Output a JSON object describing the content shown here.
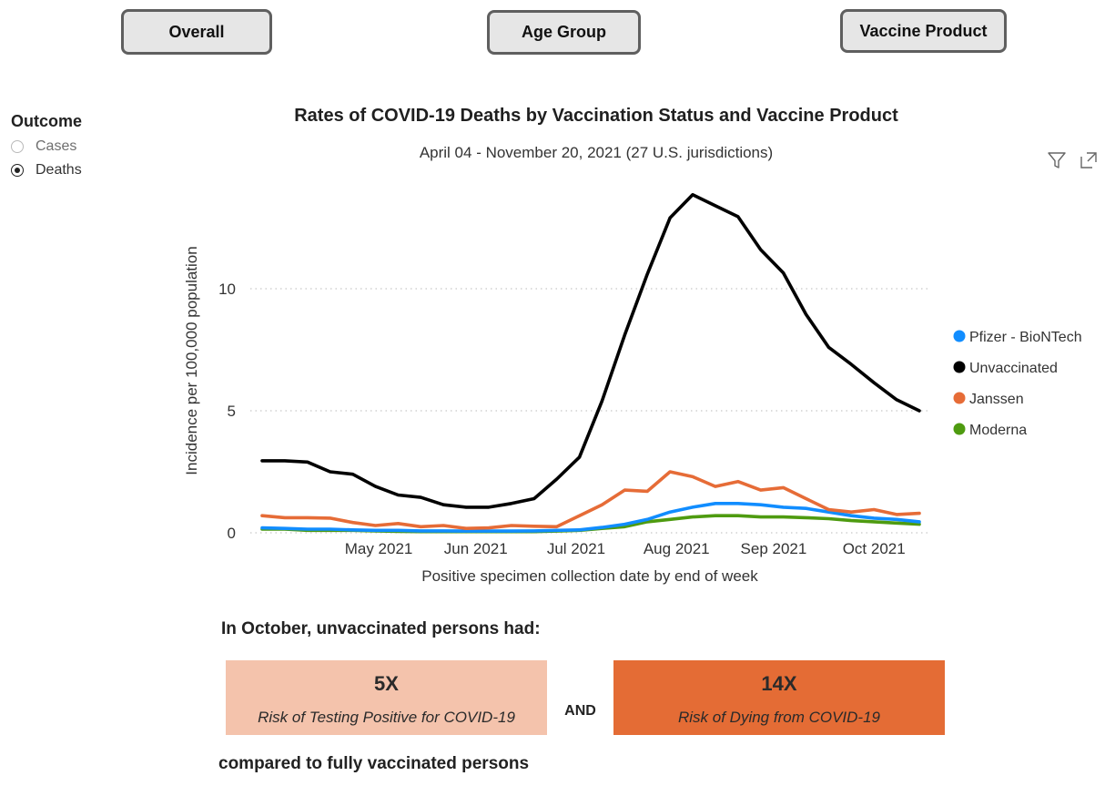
{
  "tabs": [
    {
      "label": "Overall"
    },
    {
      "label": "Age Group"
    },
    {
      "label": "Vaccine Product"
    }
  ],
  "outcome": {
    "title": "Outcome",
    "options": [
      {
        "label": "Cases",
        "selected": false
      },
      {
        "label": "Deaths",
        "selected": true
      }
    ]
  },
  "icons": {
    "filter": "filter-icon",
    "expand": "focus-mode-icon"
  },
  "chart_data": {
    "type": "line",
    "title": "Rates of COVID-19 Deaths by Vaccination Status and Vaccine Product",
    "subtitle": "April 04 - November 20, 2021 (27 U.S. jurisdictions)",
    "xlabel": "Positive specimen collection date by end of week",
    "ylabel": "Incidence per 100,000 population",
    "x_ticks": [
      "May 2021",
      "Jun 2021",
      "Jul 2021",
      "Aug 2021",
      "Sep 2021",
      "Oct 2021"
    ],
    "y_ticks": [
      0,
      5,
      10
    ],
    "ylim": [
      0,
      14.5
    ],
    "grid": "horizontal dotted",
    "legend_position": "right",
    "x": [
      "2021-04-10",
      "2021-04-17",
      "2021-04-24",
      "2021-05-01",
      "2021-05-08",
      "2021-05-15",
      "2021-05-22",
      "2021-05-29",
      "2021-06-05",
      "2021-06-12",
      "2021-06-19",
      "2021-06-26",
      "2021-07-03",
      "2021-07-10",
      "2021-07-17",
      "2021-07-24",
      "2021-07-31",
      "2021-08-07",
      "2021-08-14",
      "2021-08-21",
      "2021-08-28",
      "2021-09-04",
      "2021-09-11",
      "2021-09-18",
      "2021-09-25",
      "2021-10-02",
      "2021-10-09",
      "2021-10-16",
      "2021-10-23",
      "2021-10-30"
    ],
    "series": [
      {
        "name": "Pfizer - BioNTech",
        "color": "#118DFF",
        "values": [
          0.2,
          0.18,
          0.15,
          0.15,
          0.12,
          0.1,
          0.1,
          0.08,
          0.08,
          0.07,
          0.07,
          0.07,
          0.08,
          0.1,
          0.12,
          0.22,
          0.35,
          0.55,
          0.85,
          1.05,
          1.2,
          1.2,
          1.15,
          1.05,
          1.0,
          0.85,
          0.7,
          0.6,
          0.55,
          0.45
        ]
      },
      {
        "name": "Unvaccinated",
        "color": "#000000",
        "values": [
          2.95,
          2.95,
          2.9,
          2.5,
          2.4,
          1.9,
          1.55,
          1.45,
          1.15,
          1.05,
          1.05,
          1.2,
          1.4,
          2.2,
          3.1,
          5.4,
          8.1,
          10.6,
          12.9,
          13.85,
          13.4,
          12.95,
          11.6,
          10.65,
          8.95,
          7.6,
          6.9,
          6.15,
          5.45,
          5.0
        ]
      },
      {
        "name": "Janssen",
        "color": "#E66C37",
        "values": [
          0.7,
          0.62,
          0.62,
          0.6,
          0.42,
          0.3,
          0.38,
          0.25,
          0.3,
          0.18,
          0.2,
          0.3,
          0.27,
          0.25,
          0.7,
          1.15,
          1.75,
          1.7,
          2.5,
          2.3,
          1.9,
          2.1,
          1.75,
          1.85,
          1.4,
          0.95,
          0.85,
          0.95,
          0.75,
          0.8
        ]
      },
      {
        "name": "Moderna",
        "color": "#4E9B10",
        "values": [
          0.15,
          0.15,
          0.1,
          0.1,
          0.1,
          0.08,
          0.06,
          0.05,
          0.05,
          0.05,
          0.05,
          0.05,
          0.05,
          0.07,
          0.1,
          0.18,
          0.25,
          0.45,
          0.55,
          0.65,
          0.7,
          0.7,
          0.65,
          0.65,
          0.62,
          0.58,
          0.5,
          0.45,
          0.4,
          0.35
        ]
      }
    ]
  },
  "summary": {
    "heading": "In October, unvaccinated persons had:",
    "cases_value": "5X",
    "cases_label": "Risk of Testing Positive for COVID-19",
    "and_label": "AND",
    "deaths_value": "14X",
    "deaths_label": "Risk of Dying from COVID-19",
    "footer": "compared to fully vaccinated persons",
    "cases_color": "#F4C3AC",
    "deaths_color": "#E46C35"
  }
}
